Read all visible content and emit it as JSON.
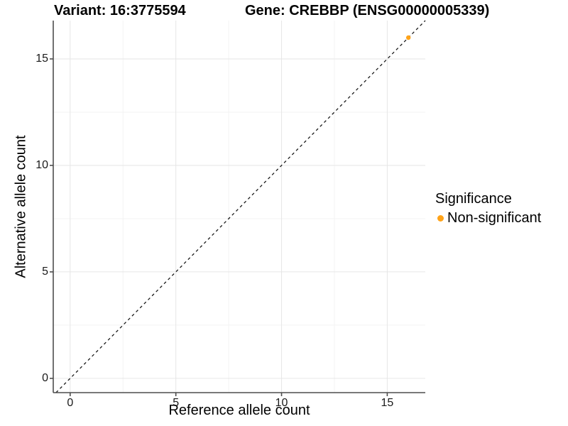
{
  "header": {
    "title_left": "Variant: 16:3775594",
    "title_right": "Gene: CREBBP (ENSG00000005339)"
  },
  "chart_data": {
    "type": "scatter",
    "title": "Variant: 16:3775594   Gene: CREBBP (ENSG00000005339)",
    "xlabel": "Reference allele count",
    "ylabel": "Alternative allele count",
    "xlim": [
      -0.8,
      16.8
    ],
    "ylim": [
      -0.67,
      16.8
    ],
    "x_ticks": [
      0,
      5,
      10,
      15
    ],
    "y_ticks": [
      0,
      5,
      10,
      15
    ],
    "x_minor_ticks": [
      2.5,
      7.5,
      12.5
    ],
    "y_minor_ticks": [
      2.5,
      7.5,
      12.5
    ],
    "grid": "major and minor, light gray on white",
    "series": [
      {
        "name": "Non-significant",
        "color": "#FFA319",
        "points": [
          {
            "x": 16,
            "y": 16
          }
        ]
      }
    ],
    "reference_line": {
      "kind": "identity y=x",
      "style": "dashed",
      "color": "#1a1a1a"
    },
    "legend": {
      "title": "Significance",
      "position": "right",
      "entries": [
        {
          "label": "Non-significant",
          "color": "#FFA319",
          "marker": "circle"
        }
      ]
    },
    "colors": {
      "point": "#FFA319",
      "grid_major": "#e6e6e6",
      "grid_minor": "#f3f3f3",
      "axis_line": "#4d4d4d",
      "tick_text": "#1a1a1a"
    }
  }
}
